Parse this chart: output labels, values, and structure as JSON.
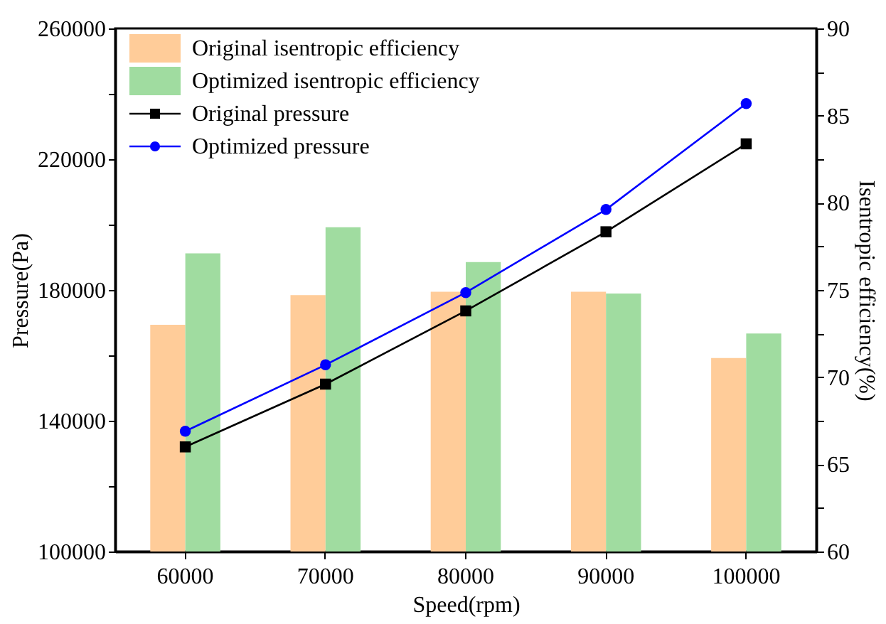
{
  "chart_data": {
    "type": "bar",
    "xlabel": "Speed(rpm)",
    "ylabel": "Pressure(Pa)",
    "y2label": "Isentropic efficiency(%)",
    "categories": [
      "60000",
      "70000",
      "80000",
      "90000",
      "100000"
    ],
    "series": [
      {
        "name": "Original isentropic efficiency",
        "axis": "y2",
        "color": "#ffcc99",
        "values": [
          73.0,
          74.7,
          74.9,
          74.9,
          71.1
        ]
      },
      {
        "name": "Optimized isentropic efficiency",
        "axis": "y2",
        "color": "#a0dca0",
        "values": [
          77.1,
          78.6,
          76.6,
          74.8,
          72.5
        ]
      },
      {
        "name": "Original pressure",
        "type": "line",
        "axis": "y",
        "color": "#000000",
        "marker": "square",
        "values": [
          132000,
          151200,
          173600,
          197800,
          224700
        ]
      },
      {
        "name": "Optimized pressure",
        "type": "line",
        "axis": "y",
        "color": "#0000ff",
        "marker": "circle",
        "values": [
          136800,
          157100,
          179200,
          204600,
          237000
        ]
      }
    ],
    "ylim": [
      100000,
      260000
    ],
    "yticks": [
      100000,
      {
        "value": 120000,
        "label": null
      },
      140000,
      {
        "value": 160000,
        "label": null
      },
      180000,
      {
        "value": 200000,
        "label": null
      },
      220000,
      {
        "value": 240000,
        "label": null
      },
      260000
    ],
    "y2lim": [
      60,
      90
    ],
    "y2ticks": [
      60,
      {
        "value": 62.5,
        "label": null
      },
      65,
      {
        "value": 67.5,
        "label": null
      },
      70,
      {
        "value": 72.5,
        "label": null
      },
      75,
      {
        "value": 77.5,
        "label": null
      },
      80,
      {
        "value": 82.5,
        "label": null
      },
      85,
      {
        "value": 87.5,
        "label": null
      },
      90
    ],
    "grid": false,
    "legend": "top left",
    "line_style": "solid"
  }
}
